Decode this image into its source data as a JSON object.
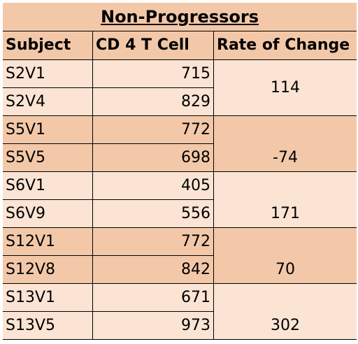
{
  "table": {
    "title": "Non-Progressors",
    "headers": {
      "subject": "Subject",
      "cd4": "CD 4 T Cell",
      "rate": "Rate of Change"
    },
    "rows": [
      {
        "subject": "S2V1",
        "cd4": "715"
      },
      {
        "subject": "S2V4",
        "cd4": "829"
      },
      {
        "subject": "S5V1",
        "cd4": "772"
      },
      {
        "subject": "S5V5",
        "cd4": "698"
      },
      {
        "subject": "S6V1",
        "cd4": "405"
      },
      {
        "subject": "S6V9",
        "cd4": "556"
      },
      {
        "subject": "S12V1",
        "cd4": "772"
      },
      {
        "subject": "S12V8",
        "cd4": "842"
      },
      {
        "subject": "S13V1",
        "cd4": "671"
      },
      {
        "subject": "S13V5",
        "cd4": "973"
      }
    ],
    "rates": [
      "114",
      "-74",
      "171",
      "70",
      "302"
    ]
  },
  "colors": {
    "dark_fill": "#f3c8a8",
    "light_fill": "#fbe4d4",
    "border": "#000000"
  }
}
